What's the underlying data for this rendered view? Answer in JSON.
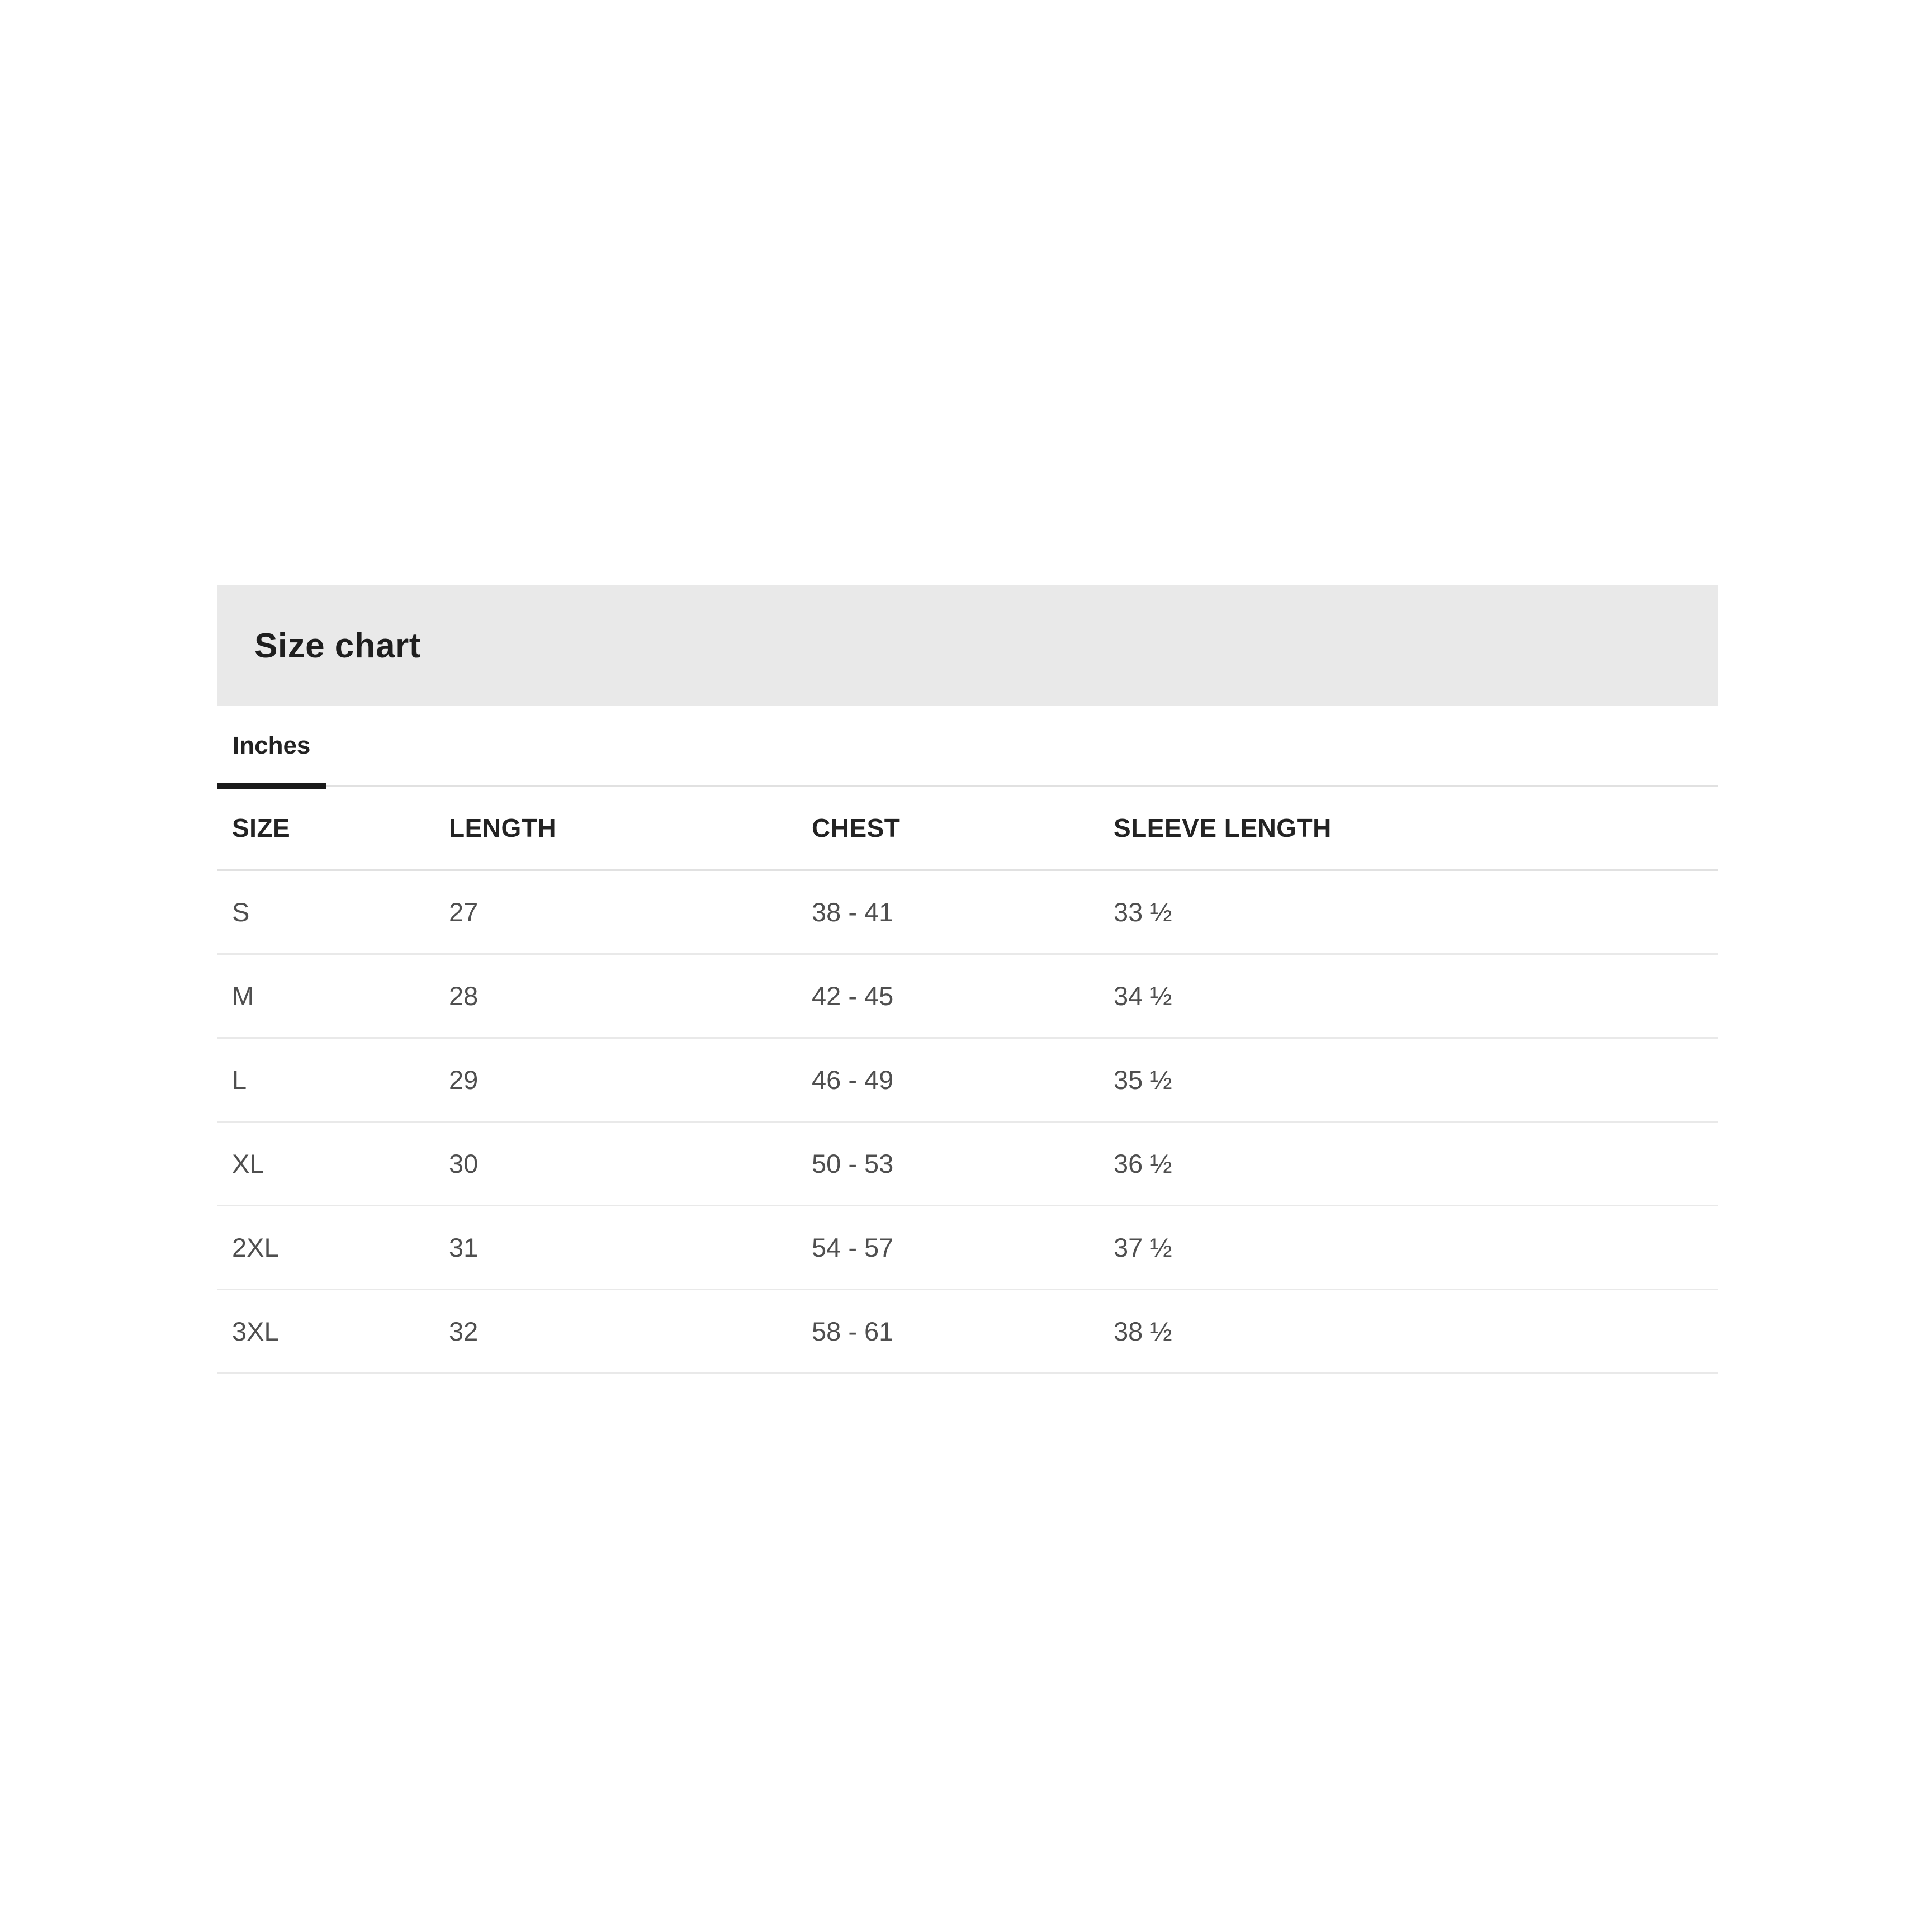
{
  "size_chart": {
    "title": "Size chart",
    "tabs": [
      {
        "label": "Inches",
        "active": true
      }
    ],
    "table": {
      "columns": [
        "SIZE",
        "LENGTH",
        "CHEST",
        "SLEEVE LENGTH"
      ],
      "rows": [
        [
          "S",
          "27",
          "38 - 41",
          "33 ½"
        ],
        [
          "M",
          "28",
          "42 - 45",
          "34 ½"
        ],
        [
          "L",
          "29",
          "46 - 49",
          "35 ½"
        ],
        [
          "XL",
          "30",
          "50 - 53",
          "36 ½"
        ],
        [
          "2XL",
          "31",
          "54 - 57",
          "37 ½"
        ],
        [
          "3XL",
          "32",
          "58 - 61",
          "38 ½"
        ]
      ]
    },
    "colors": {
      "band_background": "#e9e9e9",
      "title_text": "#1e1e1e",
      "header_text": "#232323",
      "data_text": "#4f4f4f",
      "active_tab_underline": "#1a1a1a",
      "separator_line": "#e1e1e1",
      "row_line": "#e9e9e9"
    }
  }
}
